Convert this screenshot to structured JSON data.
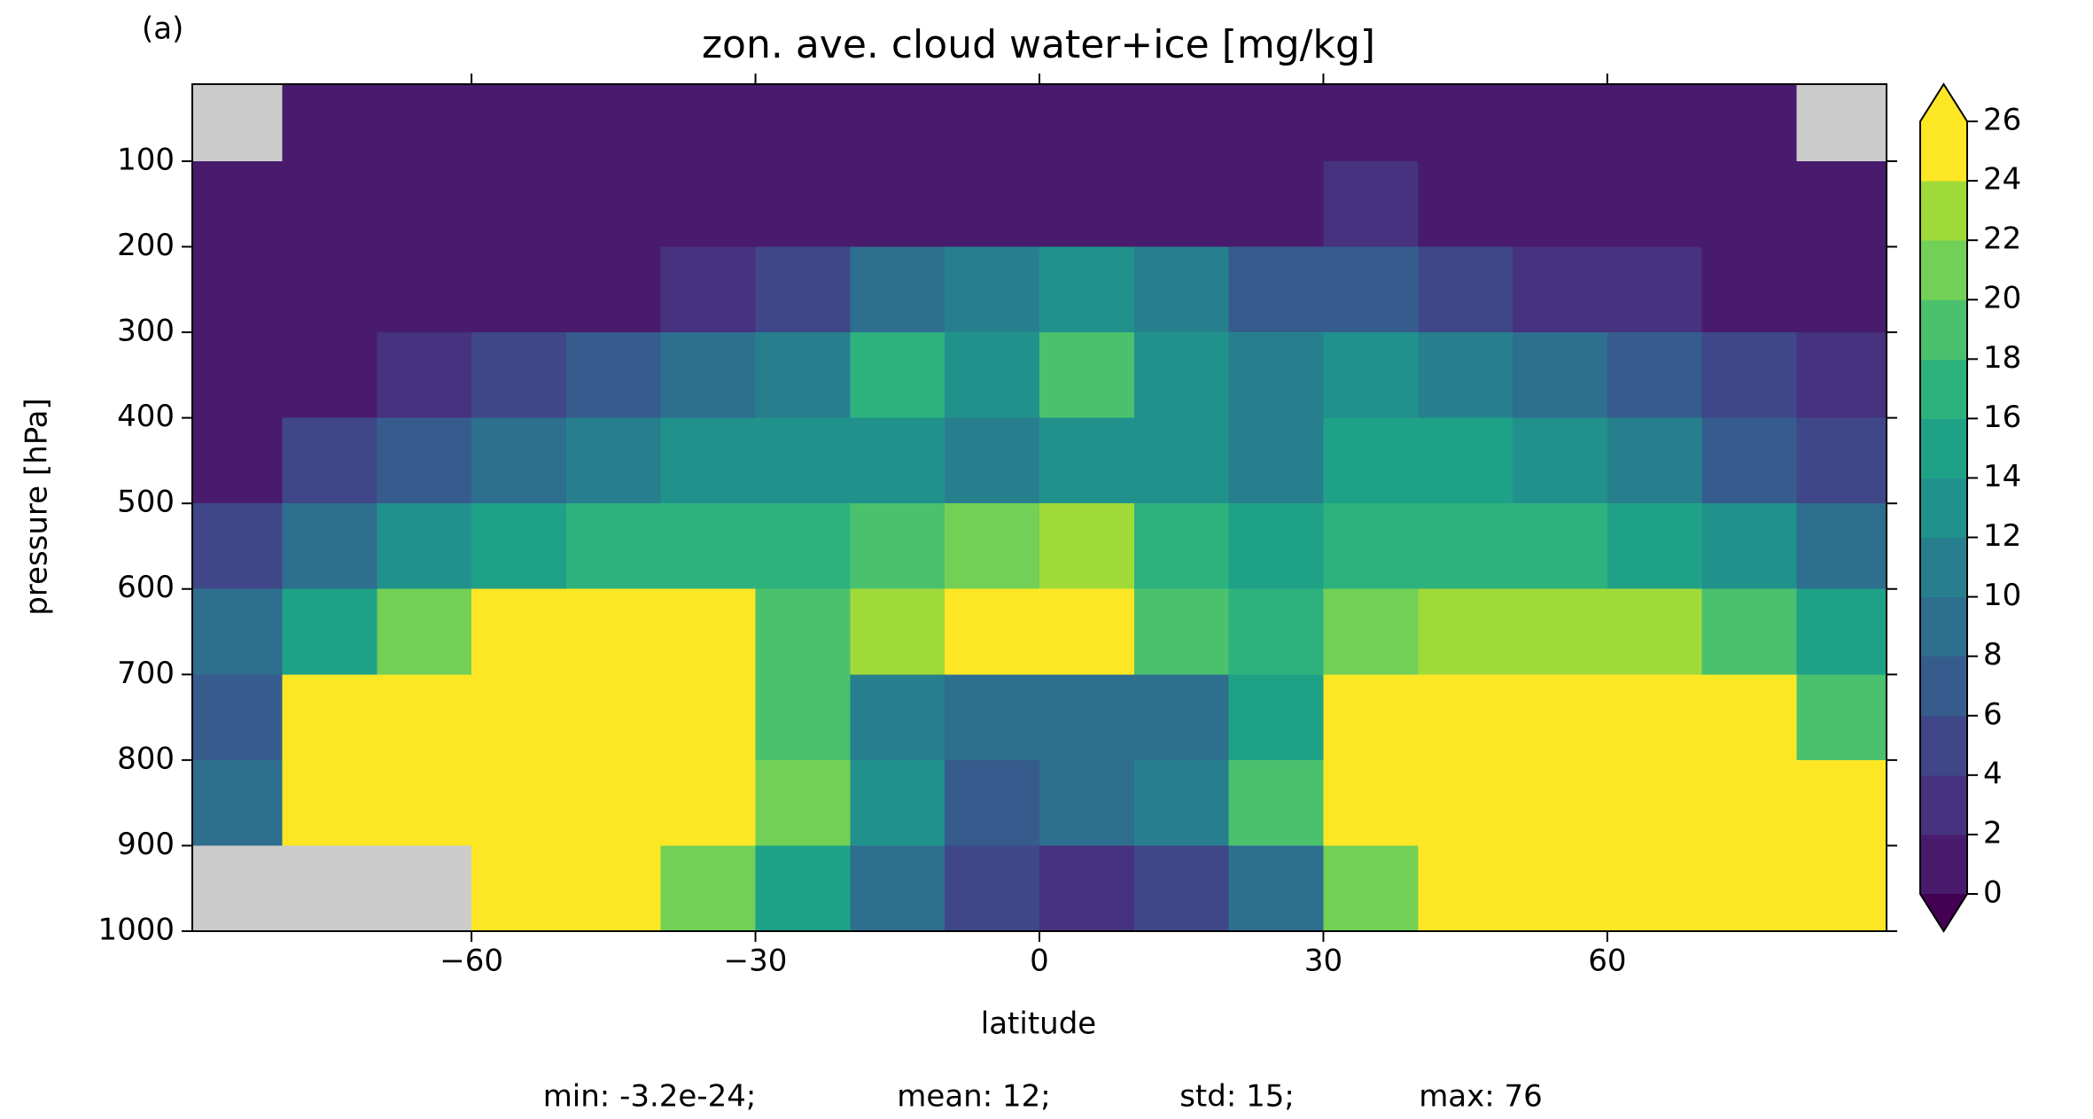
{
  "chart_data": {
    "type": "contour",
    "panel_label": "(a)",
    "title": "zon. ave. cloud water+ice [mg/kg]",
    "xlabel": "latitude",
    "ylabel": "pressure [hPa]",
    "xlim": [
      -89.5,
      89.5
    ],
    "ylim": [
      1000,
      10
    ],
    "xticks": [
      {
        "value": -60,
        "label": "−60"
      },
      {
        "value": -30,
        "label": "−30"
      },
      0,
      30,
      60
    ],
    "yticks": [
      100,
      200,
      300,
      400,
      500,
      600,
      700,
      800,
      900,
      1000
    ],
    "x": [
      -85,
      -75,
      -65,
      -55,
      -45,
      -35,
      -25,
      -15,
      -5,
      5,
      15,
      25,
      35,
      45,
      55,
      65,
      75,
      85
    ],
    "y": [
      50,
      150,
      250,
      350,
      450,
      550,
      650,
      750,
      850,
      950
    ],
    "z": [
      [
        null,
        1,
        1,
        1,
        1,
        1,
        1,
        1,
        1,
        1,
        1,
        1,
        1,
        1,
        1,
        1,
        1,
        null
      ],
      [
        1,
        1,
        1,
        1,
        1,
        1,
        1,
        1,
        1,
        1,
        1,
        1,
        3,
        1,
        1,
        1,
        1,
        1
      ],
      [
        1,
        1,
        1,
        1,
        1,
        3,
        5,
        9,
        12,
        13,
        11,
        7,
        7,
        5,
        3,
        3,
        1,
        1
      ],
      [
        1,
        1,
        3,
        5,
        7,
        9,
        11,
        17,
        13,
        19,
        13,
        11,
        13,
        11,
        9,
        7,
        5,
        3
      ],
      [
        1,
        5,
        7,
        9,
        11,
        13,
        13,
        13,
        11,
        13,
        13,
        11,
        15,
        15,
        13,
        11,
        7,
        5
      ],
      [
        5,
        9,
        13,
        15,
        17,
        17,
        17,
        19,
        21,
        23,
        17,
        15,
        17,
        17,
        17,
        15,
        13,
        9
      ],
      [
        9,
        15,
        21,
        25,
        27,
        25,
        19,
        23,
        27,
        27,
        19,
        17,
        21,
        23,
        23,
        23,
        19,
        15
      ],
      [
        7,
        27,
        27,
        27,
        27,
        27,
        19,
        11,
        9,
        9,
        9,
        15,
        27,
        27,
        27,
        27,
        25,
        19
      ],
      [
        9,
        27,
        27,
        27,
        27,
        27,
        21,
        13,
        7,
        9,
        11,
        19,
        27,
        27,
        27,
        27,
        27,
        27
      ],
      [
        null,
        null,
        null,
        27,
        27,
        21,
        15,
        9,
        5,
        3,
        5,
        9,
        21,
        27,
        27,
        27,
        27,
        27
      ]
    ],
    "levels": [
      0,
      2,
      4,
      6,
      8,
      10,
      12,
      14,
      16,
      18,
      20,
      22,
      24,
      26
    ],
    "colors": [
      "#481b6d",
      "#46327e",
      "#3f4788",
      "#365c8d",
      "#2e6e8e",
      "#277f8e",
      "#21918c",
      "#1fa187",
      "#2db27d",
      "#4ac16d",
      "#73d056",
      "#a0da39",
      "#fde725"
    ],
    "under_color": "#440154",
    "over_color": "#fde725",
    "missing_color": "#cccccc",
    "stats": [
      "min: -3.2e-24;",
      "mean: 12;",
      "std: 15;",
      "max: 76"
    ]
  }
}
